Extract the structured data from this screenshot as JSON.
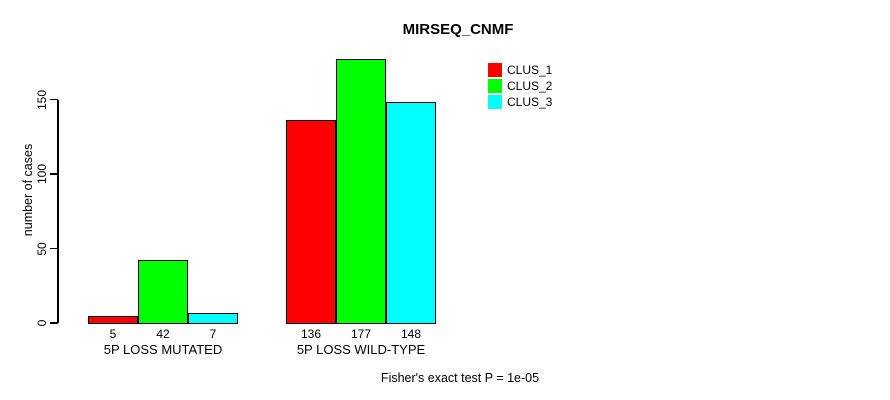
{
  "chart_data": {
    "type": "bar",
    "title": "MIRSEQ_CNMF",
    "ylabel": "number of cases",
    "xlabel": "",
    "categories": [
      "5P LOSS MUTATED",
      "5P LOSS WILD-TYPE"
    ],
    "series": [
      {
        "name": "CLUS_1",
        "color": "#ff0000",
        "values": [
          5,
          136
        ]
      },
      {
        "name": "CLUS_2",
        "color": "#00ff00",
        "values": [
          42,
          177
        ]
      },
      {
        "name": "CLUS_3",
        "color": "#00ffff",
        "values": [
          7,
          148
        ]
      }
    ],
    "bar_value_labels": [
      [
        "5",
        "42",
        "7"
      ],
      [
        "136",
        "177",
        "148"
      ]
    ],
    "yticks": [
      "0",
      "50",
      "100",
      "150"
    ],
    "ylim": [
      0,
      150
    ],
    "grid": false,
    "legend_position": "top-right-inside",
    "legend_entries": [
      "CLUS_1",
      "CLUS_2",
      "CLUS_3"
    ],
    "annotation": "Fisher's exact test P = 1e-05"
  }
}
